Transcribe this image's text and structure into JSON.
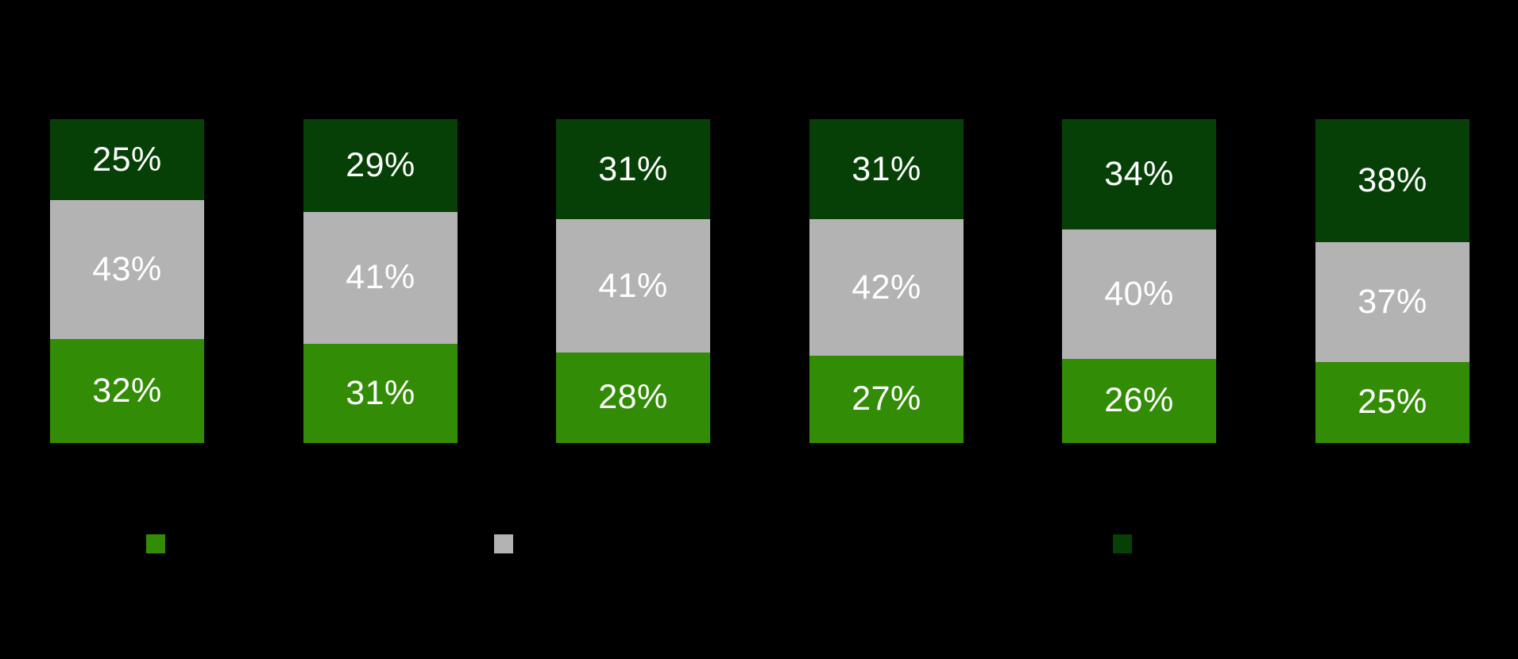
{
  "page": {
    "background_color": "#000000"
  },
  "chart_data": {
    "type": "bar",
    "subtype": "stacked-100-percent",
    "orientation": "vertical",
    "grid": false,
    "axes_visible": false,
    "ylim": [
      0,
      100
    ],
    "label_color": "#FFFFFF",
    "categories": [
      "",
      "",
      "",
      "",
      "",
      ""
    ],
    "series": [
      {
        "name": "green",
        "color": "#338C05",
        "values": [
          32,
          31,
          28,
          27,
          26,
          25
        ],
        "labels": [
          "32%",
          "31%",
          "28%",
          "27%",
          "26%",
          "25%"
        ]
      },
      {
        "name": "gray",
        "color": "#B3B3B3",
        "values": [
          43,
          41,
          41,
          42,
          40,
          37
        ],
        "labels": [
          "43%",
          "41%",
          "41%",
          "42%",
          "40%",
          "37%"
        ]
      },
      {
        "name": "dark-green",
        "color": "#064006",
        "values": [
          25,
          29,
          31,
          31,
          34,
          38
        ],
        "labels": [
          "25%",
          "29%",
          "31%",
          "31%",
          "34%",
          "38%"
        ]
      }
    ],
    "stack_order_top_to_bottom": [
      "dark-green",
      "gray",
      "green"
    ],
    "legend": {
      "position": "bottom",
      "items": [
        {
          "name": "green",
          "color": "#338C05",
          "label": ""
        },
        {
          "name": "gray",
          "color": "#B3B3B3",
          "label": ""
        },
        {
          "name": "dark-green",
          "color": "#064006",
          "label": ""
        }
      ]
    }
  }
}
